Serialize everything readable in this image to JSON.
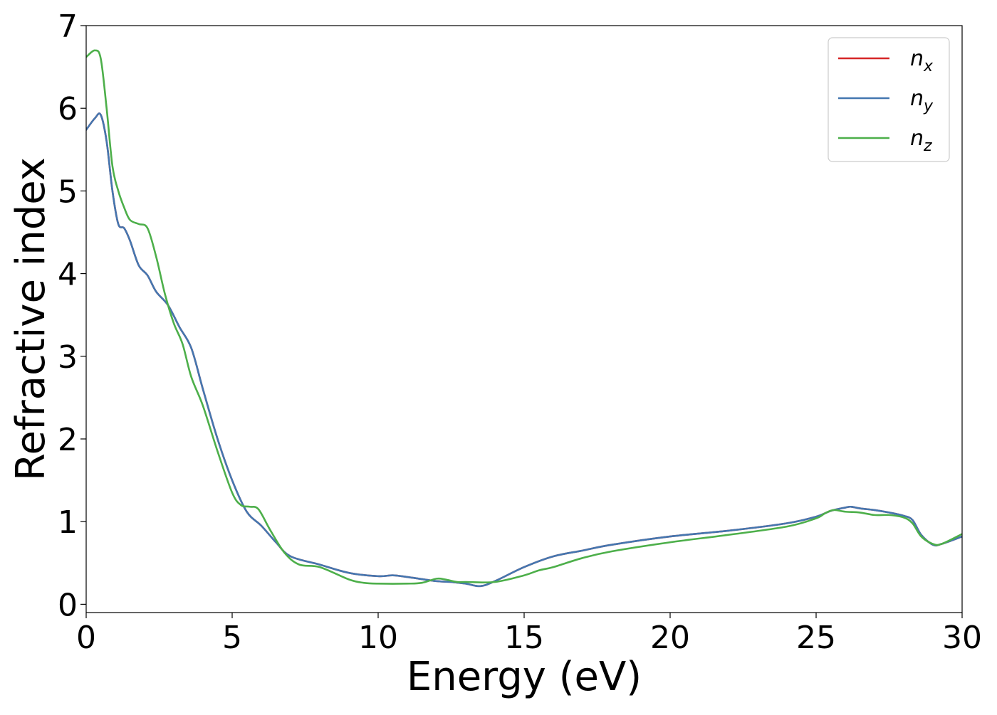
{
  "chart_data": {
    "type": "line",
    "title": "",
    "xlabel": "Energy (eV)",
    "ylabel": "Refractive index",
    "xlim": [
      0,
      30
    ],
    "ylim": [
      -0.1,
      7.0
    ],
    "xticks": [
      0,
      5,
      10,
      15,
      20,
      25,
      30
    ],
    "yticks": [
      0,
      1,
      2,
      3,
      4,
      5,
      6,
      7
    ],
    "grid": false,
    "legend_position": "top-right",
    "series": [
      {
        "name": "n_x",
        "label_base": "n",
        "label_sub": "x",
        "color": "#d62728",
        "x": [
          0,
          0.3,
          0.5,
          0.7,
          0.9,
          1.1,
          1.3,
          1.5,
          1.8,
          2.1,
          2.4,
          2.8,
          3.2,
          3.6,
          4.0,
          4.5,
          5.0,
          5.5,
          6.0,
          6.5,
          7.0,
          8.0,
          9.0,
          10.0,
          10.5,
          11.0,
          12.0,
          12.5,
          13.0,
          13.5,
          14.0,
          15.0,
          16.0,
          17.0,
          18.0,
          20.0,
          22.0,
          24.0,
          25.0,
          25.5,
          26.0,
          26.2,
          26.5,
          27.0,
          27.5,
          28.0,
          28.3,
          28.6,
          29.0,
          29.3,
          30.0
        ],
        "values": [
          5.74,
          5.88,
          5.92,
          5.6,
          5.0,
          4.6,
          4.55,
          4.4,
          4.1,
          3.98,
          3.78,
          3.62,
          3.35,
          3.1,
          2.6,
          2.0,
          1.5,
          1.12,
          0.95,
          0.75,
          0.58,
          0.48,
          0.38,
          0.34,
          0.35,
          0.33,
          0.28,
          0.27,
          0.25,
          0.22,
          0.28,
          0.45,
          0.58,
          0.65,
          0.72,
          0.82,
          0.89,
          0.98,
          1.06,
          1.13,
          1.17,
          1.18,
          1.16,
          1.14,
          1.11,
          1.07,
          1.02,
          0.84,
          0.72,
          0.73,
          0.82
        ]
      },
      {
        "name": "n_y",
        "label_base": "n",
        "label_sub": "y",
        "color": "#4477b0",
        "x": [
          0,
          0.3,
          0.5,
          0.7,
          0.9,
          1.1,
          1.3,
          1.5,
          1.8,
          2.1,
          2.4,
          2.8,
          3.2,
          3.6,
          4.0,
          4.5,
          5.0,
          5.5,
          6.0,
          6.5,
          7.0,
          8.0,
          9.0,
          10.0,
          10.5,
          11.0,
          12.0,
          12.5,
          13.0,
          13.5,
          14.0,
          15.0,
          16.0,
          17.0,
          18.0,
          20.0,
          22.0,
          24.0,
          25.0,
          25.5,
          26.0,
          26.2,
          26.5,
          27.0,
          27.5,
          28.0,
          28.3,
          28.6,
          29.0,
          29.3,
          30.0
        ],
        "values": [
          5.74,
          5.88,
          5.92,
          5.6,
          5.0,
          4.6,
          4.55,
          4.4,
          4.1,
          3.98,
          3.78,
          3.62,
          3.35,
          3.1,
          2.6,
          2.0,
          1.5,
          1.12,
          0.95,
          0.75,
          0.58,
          0.48,
          0.38,
          0.34,
          0.35,
          0.33,
          0.28,
          0.27,
          0.25,
          0.22,
          0.28,
          0.45,
          0.58,
          0.65,
          0.72,
          0.82,
          0.89,
          0.98,
          1.06,
          1.13,
          1.17,
          1.18,
          1.16,
          1.14,
          1.11,
          1.07,
          1.02,
          0.84,
          0.72,
          0.73,
          0.82
        ]
      },
      {
        "name": "n_z",
        "label_base": "n",
        "label_sub": "z",
        "color": "#4daf4a",
        "x": [
          0,
          0.3,
          0.5,
          0.7,
          0.9,
          1.1,
          1.3,
          1.5,
          1.8,
          2.1,
          2.4,
          2.7,
          3.0,
          3.3,
          3.6,
          4.0,
          4.5,
          5.0,
          5.3,
          5.6,
          5.9,
          6.3,
          6.8,
          7.3,
          8.0,
          9.0,
          9.5,
          10.0,
          11.0,
          11.5,
          12.0,
          12.3,
          12.7,
          13.0,
          14.0,
          15.0,
          15.5,
          16.0,
          17.0,
          18.0,
          20.0,
          22.0,
          24.0,
          25.0,
          25.3,
          25.6,
          26.0,
          26.5,
          27.0,
          27.5,
          28.0,
          28.3,
          28.6,
          29.0,
          29.3,
          30.0
        ],
        "values": [
          6.62,
          6.7,
          6.6,
          6.0,
          5.3,
          5.0,
          4.8,
          4.65,
          4.6,
          4.55,
          4.2,
          3.75,
          3.4,
          3.15,
          2.75,
          2.4,
          1.85,
          1.35,
          1.2,
          1.18,
          1.15,
          0.9,
          0.62,
          0.48,
          0.45,
          0.3,
          0.26,
          0.25,
          0.25,
          0.26,
          0.31,
          0.3,
          0.27,
          0.27,
          0.27,
          0.35,
          0.41,
          0.45,
          0.56,
          0.64,
          0.75,
          0.84,
          0.94,
          1.04,
          1.1,
          1.14,
          1.12,
          1.11,
          1.08,
          1.08,
          1.05,
          0.98,
          0.82,
          0.73,
          0.73,
          0.85
        ]
      }
    ]
  }
}
